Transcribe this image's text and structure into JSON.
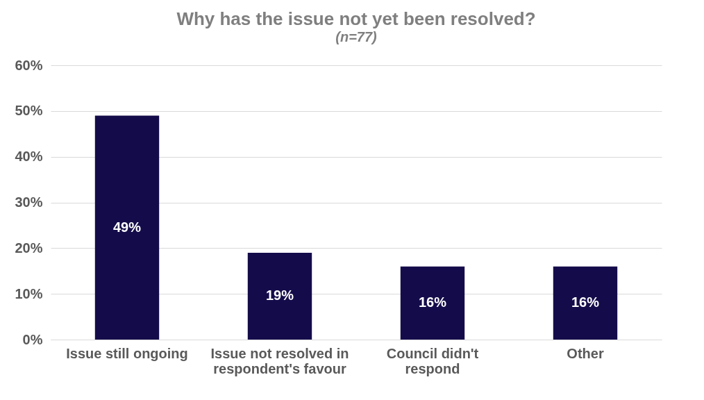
{
  "chart_data": {
    "type": "bar",
    "title": "Why has the issue not yet been resolved?",
    "subtitle": "(n=77)",
    "categories": [
      "Issue still ongoing",
      "Issue not resolved in respondent's favour",
      "Council didn't respond",
      "Other"
    ],
    "values": [
      49,
      19,
      16,
      16
    ],
    "color": "#140c4a",
    "value_labels": [
      "49%",
      "19%",
      "16%",
      "16%"
    ],
    "ylim": [
      0,
      60
    ],
    "yticks": [
      {
        "value": 0,
        "label": "0%"
      },
      {
        "value": 10,
        "label": "10%"
      },
      {
        "value": 20,
        "label": "20%"
      },
      {
        "value": 30,
        "label": "30%"
      },
      {
        "value": 40,
        "label": "40%"
      },
      {
        "value": 50,
        "label": "50%"
      },
      {
        "value": 60,
        "label": "60%"
      }
    ],
    "grid": "y"
  }
}
